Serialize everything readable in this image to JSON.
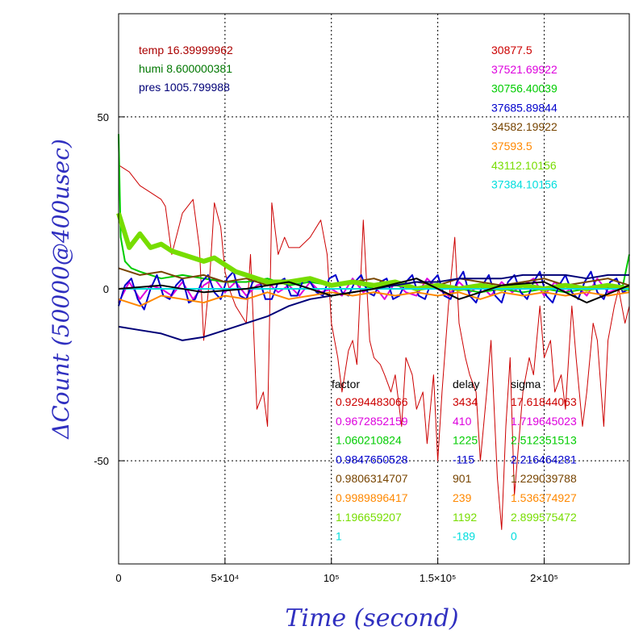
{
  "chart_data": {
    "type": "line",
    "xlabel": "Time (second)",
    "ylabel": "ΔCount (50000@400usec)",
    "xlim": [
      0,
      240000
    ],
    "ylim": [
      -80,
      80
    ],
    "grid": true,
    "x_ticks": [
      {
        "value": 0,
        "label": "0"
      },
      {
        "value": 50000,
        "label": "5×10⁴"
      },
      {
        "value": 100000,
        "label": "10⁵"
      },
      {
        "value": 150000,
        "label": "1.5×10⁵"
      },
      {
        "value": 200000,
        "label": "2×10⁵"
      }
    ],
    "y_ticks": [
      {
        "value": 50,
        "label": "50"
      },
      {
        "value": 0,
        "label": "0"
      },
      {
        "value": -50,
        "label": "-50"
      }
    ],
    "env": [
      {
        "text": "temp 16.39999962",
        "color": "#aa0000"
      },
      {
        "text": "humi 8.600000381",
        "color": "#007700"
      },
      {
        "text": "pres 1005.799988",
        "color": "#000077"
      }
    ],
    "series_values": [
      {
        "text": "30877.5",
        "color": "#cc0000"
      },
      {
        "text": "37521.69922",
        "color": "#dd00dd"
      },
      {
        "text": "30756.40039",
        "color": "#00cc00"
      },
      {
        "text": "37685.89844",
        "color": "#0000cc"
      },
      {
        "text": "34582.19922",
        "color": "#774400"
      },
      {
        "text": "37593.5",
        "color": "#ff8800"
      },
      {
        "text": "43112.10156",
        "color": "#77dd00"
      },
      {
        "text": "37384.10156",
        "color": "#00dddd"
      }
    ],
    "table_headers": {
      "factor": "factor",
      "delay": "delay",
      "sigma": "sigma"
    },
    "table_rows": [
      {
        "factor": "0.9294483066",
        "delay": "3434",
        "sigma": "17.61844063",
        "color": "#cc0000"
      },
      {
        "factor": "0.9672852159",
        "delay": "410",
        "sigma": "1.719645023",
        "color": "#dd00dd"
      },
      {
        "factor": "1.060210824",
        "delay": "1225",
        "sigma": "2.512351513",
        "color": "#00cc00"
      },
      {
        "factor": "0.9847650528",
        "delay": "-115",
        "sigma": "2.216464281",
        "color": "#0000cc"
      },
      {
        "factor": "0.9806314707",
        "delay": "901",
        "sigma": "1.229039788",
        "color": "#774400"
      },
      {
        "factor": "0.9989896417",
        "delay": "239",
        "sigma": "1.536374927",
        "color": "#ff8800"
      },
      {
        "factor": "1.196659207",
        "delay": "1192",
        "sigma": "2.899575472",
        "color": "#77dd00"
      },
      {
        "factor": "1",
        "delay": "-189",
        "sigma": "0",
        "color": "#00dddd"
      }
    ],
    "series": [
      {
        "color": "#cc0000",
        "x": [
          0,
          5000,
          10000,
          15000,
          20000,
          22000,
          25000,
          30000,
          35000,
          38000,
          40000,
          43000,
          45000,
          48000,
          50000,
          52000,
          55000,
          60000,
          62000,
          65000,
          68000,
          70000,
          72000,
          75000,
          78000,
          80000,
          85000,
          90000,
          95000,
          98000,
          100000,
          103000,
          105000,
          108000,
          110000,
          112000,
          115000,
          118000,
          120000,
          123000,
          125000,
          128000,
          130000,
          133000,
          135000,
          138000,
          140000,
          143000,
          145000,
          148000,
          150000,
          152000,
          155000,
          158000,
          160000,
          163000,
          165000,
          168000,
          170000,
          173000,
          175000,
          178000,
          180000,
          182000,
          184000,
          186000,
          188000,
          190000,
          193000,
          195000,
          198000,
          200000,
          203000,
          205000,
          208000,
          210000,
          213000,
          215000,
          218000,
          220000,
          223000,
          225000,
          228000,
          230000,
          233000,
          235000,
          238000,
          240000
        ],
        "y": [
          36,
          34,
          30,
          28,
          26,
          24,
          10,
          22,
          26,
          12,
          -15,
          5,
          25,
          18,
          5,
          0,
          -5,
          -10,
          10,
          -35,
          -30,
          -40,
          25,
          10,
          15,
          12,
          12,
          15,
          20,
          10,
          -10,
          -20,
          -30,
          -18,
          -15,
          -22,
          20,
          -15,
          -20,
          -22,
          -25,
          -30,
          -25,
          -40,
          -20,
          -25,
          -35,
          -30,
          -45,
          -25,
          -50,
          -30,
          -5,
          15,
          -10,
          -20,
          -25,
          -30,
          -50,
          -30,
          -15,
          -55,
          -70,
          -40,
          -20,
          -60,
          -45,
          -30,
          -20,
          -25,
          -5,
          -20,
          -15,
          -30,
          -25,
          -35,
          -5,
          -20,
          -40,
          -30,
          -10,
          -15,
          -40,
          -15,
          -5,
          0,
          -10,
          -5
        ]
      },
      {
        "color": "#dd00dd",
        "x": [
          0,
          5000,
          10000,
          15000,
          20000,
          25000,
          30000,
          35000,
          40000,
          45000,
          50000,
          55000,
          60000,
          65000,
          70000,
          75000,
          80000,
          85000,
          90000,
          95000,
          100000,
          105000,
          110000,
          115000,
          120000,
          125000,
          130000,
          135000,
          140000,
          145000,
          150000,
          155000,
          160000,
          165000,
          170000,
          175000,
          180000,
          185000,
          190000,
          195000,
          200000,
          205000,
          210000,
          215000,
          220000,
          225000,
          230000,
          235000,
          240000
        ],
        "y": [
          -4,
          2,
          -3,
          1,
          0,
          -2,
          2,
          -3,
          1,
          3,
          -1,
          2,
          -2,
          1,
          2,
          -1,
          1,
          -2,
          2,
          -1,
          0,
          -2,
          3,
          -1,
          1,
          -3,
          2,
          -1,
          -2,
          3,
          0,
          -2,
          2,
          -1,
          1,
          -2,
          2,
          -1,
          1,
          3,
          -2,
          2,
          -1,
          1,
          -2,
          3,
          -1,
          0,
          1
        ]
      },
      {
        "color": "#00cc00",
        "x": [
          0,
          1000,
          3000,
          6000,
          10000,
          15000,
          20000,
          30000,
          40000,
          50000,
          60000,
          70000,
          80000,
          90000,
          100000,
          110000,
          120000,
          130000,
          140000,
          150000,
          160000,
          170000,
          180000,
          190000,
          200000,
          210000,
          220000,
          230000,
          237000,
          240000
        ],
        "y": [
          45,
          15,
          8,
          6,
          5,
          4,
          3,
          4,
          3,
          2,
          2,
          3,
          1,
          2,
          1,
          2,
          0,
          1,
          0,
          1,
          0,
          -1,
          0,
          -1,
          0,
          -1,
          0,
          0,
          1,
          10
        ]
      },
      {
        "color": "#0000cc",
        "x": [
          0,
          3000,
          6000,
          9000,
          12000,
          15000,
          18000,
          21000,
          24000,
          27000,
          30000,
          33000,
          36000,
          39000,
          42000,
          45000,
          48000,
          51000,
          54000,
          57000,
          60000,
          63000,
          66000,
          69000,
          72000,
          75000,
          78000,
          81000,
          84000,
          87000,
          90000,
          93000,
          96000,
          99000,
          102000,
          105000,
          108000,
          111000,
          114000,
          117000,
          120000,
          123000,
          126000,
          129000,
          132000,
          135000,
          138000,
          141000,
          144000,
          147000,
          150000,
          153000,
          156000,
          159000,
          162000,
          165000,
          168000,
          171000,
          174000,
          177000,
          180000,
          183000,
          186000,
          189000,
          192000,
          195000,
          198000,
          201000,
          204000,
          207000,
          210000,
          213000,
          216000,
          219000,
          222000,
          225000,
          228000,
          231000,
          234000,
          237000,
          240000
        ],
        "y": [
          -5,
          1,
          3,
          -3,
          -6,
          0,
          4,
          -2,
          -3,
          1,
          3,
          -4,
          -3,
          2,
          4,
          -1,
          -3,
          3,
          5,
          -2,
          -3,
          2,
          3,
          -3,
          -3,
          2,
          3,
          -2,
          -2,
          3,
          2,
          -1,
          -2,
          3,
          4,
          -1,
          -2,
          2,
          4,
          -1,
          -2,
          2,
          3,
          -3,
          -2,
          2,
          4,
          -2,
          -3,
          2,
          4,
          -2,
          -3,
          2,
          5,
          -2,
          -4,
          1,
          4,
          -2,
          -4,
          2,
          4,
          -1,
          -3,
          2,
          5,
          -2,
          -4,
          1,
          4,
          -1,
          -3,
          2,
          5,
          -1,
          -3,
          2,
          3,
          -1,
          0
        ]
      },
      {
        "color": "#774400",
        "x": [
          0,
          10000,
          20000,
          30000,
          40000,
          50000,
          60000,
          70000,
          80000,
          90000,
          100000,
          110000,
          120000,
          130000,
          140000,
          150000,
          160000,
          170000,
          180000,
          190000,
          200000,
          210000,
          220000,
          230000,
          240000
        ],
        "y": [
          6,
          4,
          5,
          3,
          4,
          2,
          3,
          1,
          2,
          3,
          1,
          2,
          3,
          1,
          2,
          1,
          3,
          2,
          1,
          2,
          3,
          1,
          2,
          3,
          1
        ]
      },
      {
        "color": "#ff8800",
        "x": [
          0,
          10000,
          20000,
          30000,
          40000,
          50000,
          60000,
          70000,
          80000,
          90000,
          100000,
          110000,
          120000,
          130000,
          140000,
          150000,
          160000,
          170000,
          180000,
          190000,
          200000,
          210000,
          220000,
          230000,
          240000
        ],
        "y": [
          -3,
          -5,
          -2,
          -3,
          -4,
          -2,
          -3,
          -1,
          -3,
          -2,
          -1,
          -2,
          -1,
          -2,
          -1,
          -2,
          -1,
          -3,
          -1,
          -2,
          -1,
          -2,
          -1,
          -2,
          -1
        ]
      },
      {
        "color": "#77dd00",
        "x": [
          0,
          5000,
          10000,
          15000,
          20000,
          25000,
          30000,
          35000,
          40000,
          45000,
          50000,
          55000,
          60000,
          65000,
          70000,
          80000,
          90000,
          100000,
          110000,
          120000,
          130000,
          140000,
          150000,
          160000,
          170000,
          180000,
          190000,
          200000,
          210000,
          220000,
          230000,
          240000
        ],
        "y": [
          22,
          12,
          16,
          12,
          13,
          11,
          10,
          9,
          8,
          9,
          7,
          5,
          4,
          3,
          2,
          2,
          3,
          1,
          2,
          1,
          2,
          0,
          1,
          0,
          1,
          0,
          1,
          0,
          1,
          0,
          1,
          0
        ]
      },
      {
        "color": "#00dddd",
        "x": [
          0,
          240000
        ],
        "y": [
          0,
          0
        ]
      },
      {
        "color": "#000077",
        "x": [
          0,
          10000,
          20000,
          30000,
          40000,
          50000,
          60000,
          70000,
          80000,
          90000,
          100000,
          110000,
          120000,
          130000,
          140000,
          150000,
          160000,
          170000,
          180000,
          190000,
          200000,
          210000,
          220000,
          230000,
          240000
        ],
        "y": [
          -11,
          -12,
          -13,
          -15,
          -14,
          -12,
          -10,
          -8,
          -5,
          -3,
          -2,
          -1,
          0,
          1,
          2,
          2,
          3,
          3,
          3,
          4,
          4,
          4,
          3,
          4,
          4
        ]
      },
      {
        "color": "#000000",
        "x": [
          0,
          20000,
          40000,
          60000,
          80000,
          100000,
          120000,
          140000,
          160000,
          180000,
          200000,
          220000,
          240000
        ],
        "y": [
          0,
          1,
          -1,
          0,
          2,
          -2,
          0,
          3,
          -3,
          1,
          2,
          -4,
          1
        ]
      }
    ]
  }
}
